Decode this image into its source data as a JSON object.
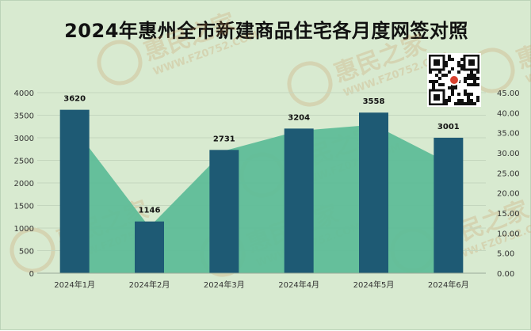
{
  "title": "2024年惠州全市新建商品住宅各月度网签对照",
  "watermark": {
    "brand": "惠民之家",
    "site": "WWW.FZ0752.COM"
  },
  "colors": {
    "background": "#d8ead0",
    "bar": "#1e5a74",
    "area": "#5fbd98",
    "grid": "#c4d6be",
    "axis_text": "#333333"
  },
  "chart_data": {
    "type": "bar",
    "categories": [
      "2024年1月",
      "2024年2月",
      "2024年3月",
      "2024年4月",
      "2024年5月",
      "2024年6月"
    ],
    "series": [
      {
        "type": "bar",
        "axis": "left",
        "values": [
          3620,
          1146,
          2731,
          3204,
          3558,
          3001
        ],
        "data_labels": [
          "3620",
          "1146",
          "2731",
          "3204",
          "3558",
          "3001"
        ]
      },
      {
        "type": "area",
        "axis": "right",
        "values": [
          36.0,
          11.5,
          30.5,
          35.5,
          37.0,
          27.5
        ]
      }
    ],
    "y_left": {
      "min": 0,
      "max": 4000,
      "ticks": [
        "0",
        "500",
        "1000",
        "1500",
        "2000",
        "2500",
        "3000",
        "3500",
        "4000"
      ]
    },
    "y_right": {
      "min": 0,
      "max": 45,
      "ticks": [
        "0.00",
        "5.00",
        "10.00",
        "15.00",
        "20.00",
        "25.00",
        "30.00",
        "35.00",
        "40.00",
        "45.00"
      ]
    },
    "grid": true
  }
}
